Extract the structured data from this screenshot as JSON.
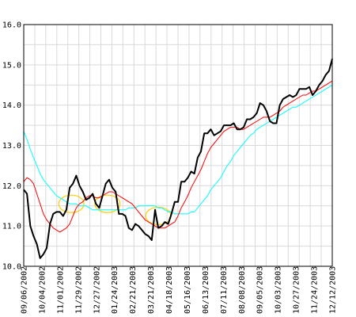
{
  "chart_data": {
    "type": "line",
    "title": "",
    "xlabel": "",
    "ylabel": "",
    "ylim": [
      10.0,
      16.0
    ],
    "y_ticks": [
      "10.0",
      "11.0",
      "12.0",
      "13.0",
      "14.0",
      "15.0",
      "16.0"
    ],
    "x_tick_labels": [
      "09/06/2002",
      "10/04/2002",
      "11/01/2002",
      "11/29/2002",
      "12/27/2002",
      "01/24/2003",
      "02/21/2003",
      "03/21/2003",
      "04/18/2003",
      "05/16/2003",
      "06/13/2003",
      "07/11/2003",
      "08/08/2003",
      "09/05/2003",
      "10/03/2003",
      "10/27/2003",
      "11/24/2003",
      "12/12/2003"
    ],
    "grid": true,
    "legend": "none",
    "series": [
      {
        "color": "#000000",
        "values": [
          11.9,
          11.8,
          11.0,
          10.75,
          10.55,
          10.2,
          10.3,
          10.45,
          11.05,
          11.3,
          11.35,
          11.35,
          11.25,
          11.4,
          11.95,
          12.05,
          12.25,
          12.0,
          11.85,
          11.65,
          11.7,
          11.8,
          11.55,
          11.45,
          11.75,
          12.05,
          12.15,
          11.95,
          11.85,
          11.3,
          11.3,
          11.25,
          10.95,
          10.9,
          11.05,
          11.0,
          10.9,
          10.8,
          10.75,
          10.65,
          11.4,
          10.95,
          11.0,
          11.1,
          11.05,
          11.3,
          11.6,
          11.6,
          12.1,
          12.1,
          12.2,
          12.35,
          12.3,
          12.7,
          12.85,
          13.3,
          13.3,
          13.4,
          13.25,
          13.3,
          13.35,
          13.5,
          13.5,
          13.5,
          13.55,
          13.4,
          13.4,
          13.45,
          13.65,
          13.65,
          13.7,
          13.8,
          14.05,
          14.0,
          13.85,
          13.6,
          13.55,
          13.55,
          14.0,
          14.15,
          14.2,
          14.25,
          14.2,
          14.25,
          14.4,
          14.4,
          14.4,
          14.45,
          14.25,
          14.35,
          14.5,
          14.6,
          14.75,
          14.85,
          15.15
        ]
      },
      {
        "color": "#ff0000",
        "values": [
          12.1,
          12.2,
          12.15,
          12.05,
          11.8,
          11.55,
          11.3,
          11.15,
          11.05,
          10.95,
          10.9,
          10.85,
          10.9,
          10.95,
          11.05,
          11.25,
          11.45,
          11.55,
          11.6,
          11.7,
          11.75,
          11.75,
          11.7,
          11.7,
          11.75,
          11.8,
          11.85,
          11.85,
          11.8,
          11.75,
          11.7,
          11.65,
          11.6,
          11.55,
          11.45,
          11.35,
          11.25,
          11.15,
          11.1,
          11.05,
          11.0,
          10.95,
          10.95,
          10.95,
          11.0,
          11.05,
          11.1,
          11.25,
          11.45,
          11.6,
          11.75,
          11.95,
          12.1,
          12.25,
          12.4,
          12.6,
          12.8,
          12.95,
          13.05,
          13.15,
          13.25,
          13.35,
          13.4,
          13.45,
          13.45,
          13.45,
          13.4,
          13.4,
          13.45,
          13.5,
          13.55,
          13.6,
          13.65,
          13.7,
          13.7,
          13.7,
          13.75,
          13.8,
          13.85,
          13.95,
          14.0,
          14.05,
          14.1,
          14.15,
          14.2,
          14.25,
          14.25,
          14.3,
          14.35,
          14.35,
          14.4,
          14.45,
          14.5,
          14.55,
          14.6
        ]
      },
      {
        "color": "#00ffff",
        "values": [
          13.35,
          13.15,
          12.9,
          12.7,
          12.5,
          12.3,
          12.15,
          12.05,
          11.95,
          11.85,
          11.75,
          11.7,
          11.65,
          11.6,
          11.55,
          11.55,
          11.55,
          11.5,
          11.5,
          11.5,
          11.45,
          11.4,
          11.4,
          11.4,
          11.4,
          11.4,
          11.4,
          11.4,
          11.4,
          11.4,
          11.4,
          11.4,
          11.45,
          11.45,
          11.45,
          11.5,
          11.5,
          11.5,
          11.5,
          11.5,
          11.5,
          11.45,
          11.45,
          11.4,
          11.35,
          11.35,
          11.3,
          11.3,
          11.3,
          11.3,
          11.3,
          11.35,
          11.35,
          11.45,
          11.55,
          11.65,
          11.75,
          11.9,
          12.0,
          12.1,
          12.2,
          12.35,
          12.5,
          12.6,
          12.75,
          12.85,
          12.95,
          13.05,
          13.15,
          13.25,
          13.3,
          13.4,
          13.45,
          13.5,
          13.55,
          13.6,
          13.65,
          13.7,
          13.75,
          13.8,
          13.85,
          13.9,
          13.95,
          13.95,
          14.0,
          14.05,
          14.1,
          14.15,
          14.2,
          14.25,
          14.3,
          14.35,
          14.4,
          14.45,
          14.5
        ]
      }
    ],
    "annotations": [
      {
        "shape": "ellipse",
        "color": "#ffcc00",
        "x_index": 14.5,
        "y": 11.55
      },
      {
        "shape": "ellipse",
        "color": "#ffcc00",
        "x_index": 25.5,
        "y": 11.55
      },
      {
        "shape": "ellipse",
        "color": "#ffcc00",
        "x_index": 41,
        "y": 11.25
      }
    ]
  }
}
